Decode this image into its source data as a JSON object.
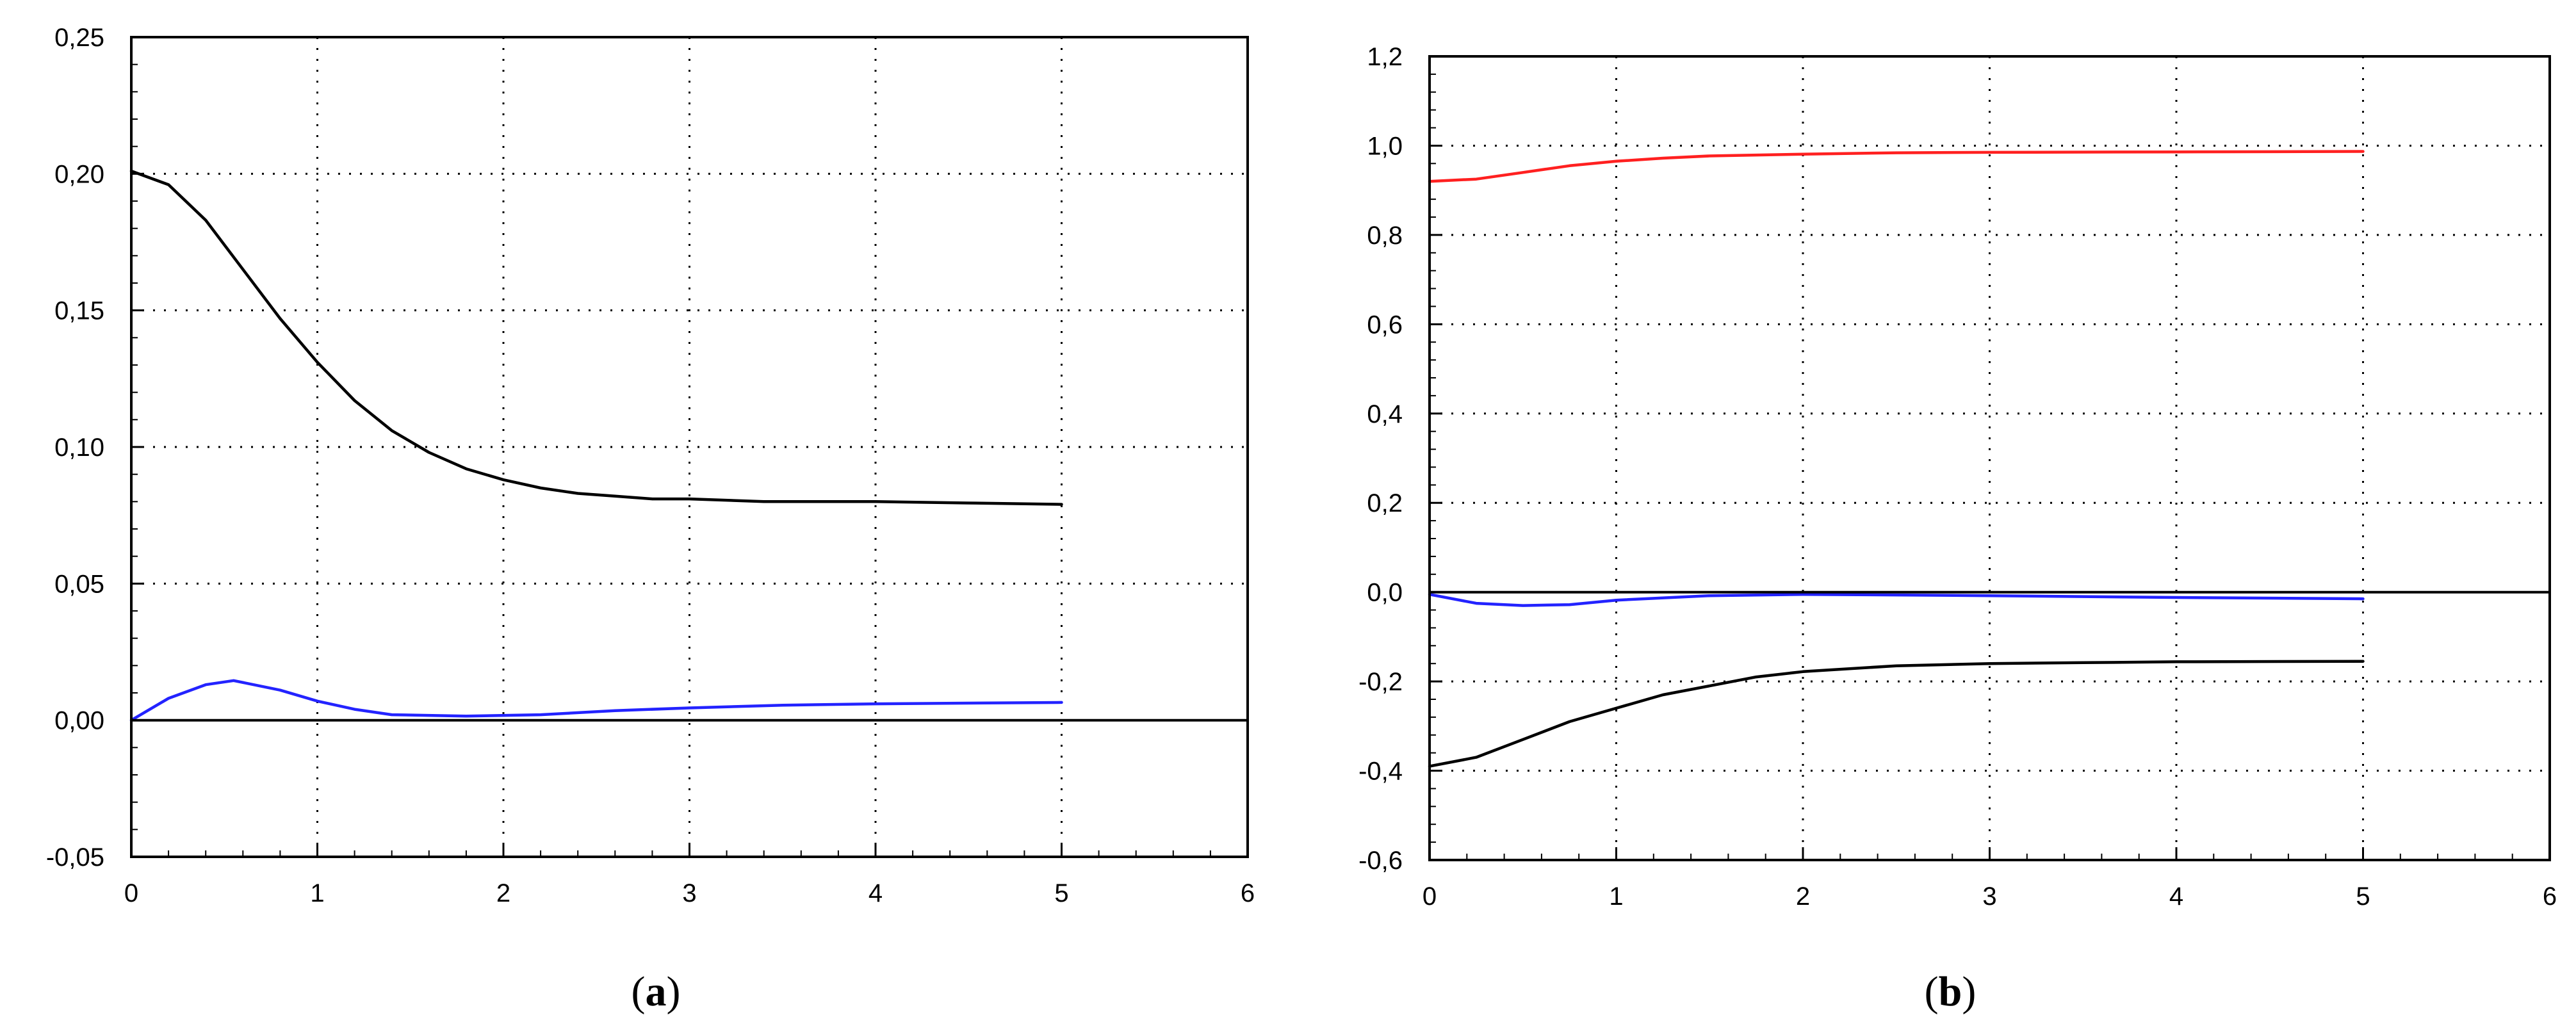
{
  "chart_data": [
    {
      "type": "line",
      "panel_label": "a",
      "xlim": [
        0,
        6
      ],
      "ylim": [
        -0.05,
        0.25
      ],
      "xticks": [
        "0",
        "1",
        "2",
        "3",
        "4",
        "5",
        "6"
      ],
      "xtick_values": [
        0,
        1,
        2,
        3,
        4,
        5,
        6
      ],
      "yticks": [
        "-0,05",
        "0,00",
        "0,05",
        "0,10",
        "0,15",
        "0,20",
        "0,25"
      ],
      "ytick_values": [
        -0.05,
        0,
        0.05,
        0.1,
        0.15,
        0.2,
        0.25
      ],
      "grid": "dotted",
      "legend": "none",
      "series": [
        {
          "color": "#000000",
          "x": [
            0,
            0.2,
            0.4,
            0.6,
            0.8,
            1.0,
            1.2,
            1.4,
            1.6,
            1.8,
            2.0,
            2.2,
            2.4,
            2.6,
            2.8,
            3.0,
            3.4,
            4.0,
            4.5,
            5.0
          ],
          "y": [
            0.201,
            0.196,
            0.183,
            0.165,
            0.147,
            0.131,
            0.117,
            0.106,
            0.098,
            0.092,
            0.088,
            0.085,
            0.083,
            0.082,
            0.081,
            0.081,
            0.08,
            0.08,
            0.0795,
            0.079
          ]
        },
        {
          "color": "#2323ff",
          "x": [
            0,
            0.2,
            0.4,
            0.55,
            0.8,
            1.0,
            1.2,
            1.4,
            1.8,
            2.2,
            2.6,
            3.0,
            3.5,
            4.0,
            5.0
          ],
          "y": [
            0.0,
            0.008,
            0.013,
            0.0145,
            0.011,
            0.007,
            0.004,
            0.002,
            0.0015,
            0.002,
            0.0035,
            0.0045,
            0.0055,
            0.006,
            0.0065
          ]
        },
        {
          "color": "#000000",
          "x": [
            0,
            6
          ],
          "y": [
            0,
            0
          ]
        }
      ]
    },
    {
      "type": "line",
      "panel_label": "b",
      "xlim": [
        0,
        6
      ],
      "ylim": [
        -0.6,
        1.2
      ],
      "xticks": [
        "0",
        "1",
        "2",
        "3",
        "4",
        "5",
        "6"
      ],
      "xtick_values": [
        0,
        1,
        2,
        3,
        4,
        5,
        6
      ],
      "yticks": [
        "-0,6",
        "-0,4",
        "-0,2",
        "0,0",
        "0,2",
        "0,4",
        "0,6",
        "0,8",
        "1,0",
        "1,2"
      ],
      "ytick_values": [
        -0.6,
        -0.4,
        -0.2,
        0,
        0.2,
        0.4,
        0.6,
        0.8,
        1.0,
        1.2
      ],
      "grid": "dotted",
      "legend": "none",
      "series": [
        {
          "color": "#ff2020",
          "x": [
            0,
            0.25,
            0.5,
            0.75,
            1.0,
            1.25,
            1.5,
            2.0,
            2.5,
            3.0,
            4.0,
            5.0
          ],
          "y": [
            0.92,
            0.925,
            0.94,
            0.955,
            0.965,
            0.972,
            0.977,
            0.981,
            0.984,
            0.985,
            0.986,
            0.987
          ]
        },
        {
          "color": "#2323ff",
          "x": [
            0,
            0.25,
            0.5,
            0.75,
            1.0,
            1.5,
            2.0,
            3.0,
            4.0,
            5.0
          ],
          "y": [
            -0.005,
            -0.025,
            -0.03,
            -0.028,
            -0.018,
            -0.008,
            -0.005,
            -0.008,
            -0.012,
            -0.015
          ]
        },
        {
          "color": "#000000",
          "x": [
            0,
            0.25,
            0.5,
            0.75,
            1.0,
            1.25,
            1.5,
            1.75,
            2.0,
            2.5,
            3.0,
            3.5,
            4.0,
            5.0
          ],
          "y": [
            -0.39,
            -0.37,
            -0.33,
            -0.29,
            -0.26,
            -0.23,
            -0.21,
            -0.19,
            -0.178,
            -0.165,
            -0.16,
            -0.158,
            -0.156,
            -0.155
          ]
        },
        {
          "color": "#000000",
          "x": [
            0,
            6
          ],
          "y": [
            0,
            0
          ]
        }
      ]
    }
  ]
}
